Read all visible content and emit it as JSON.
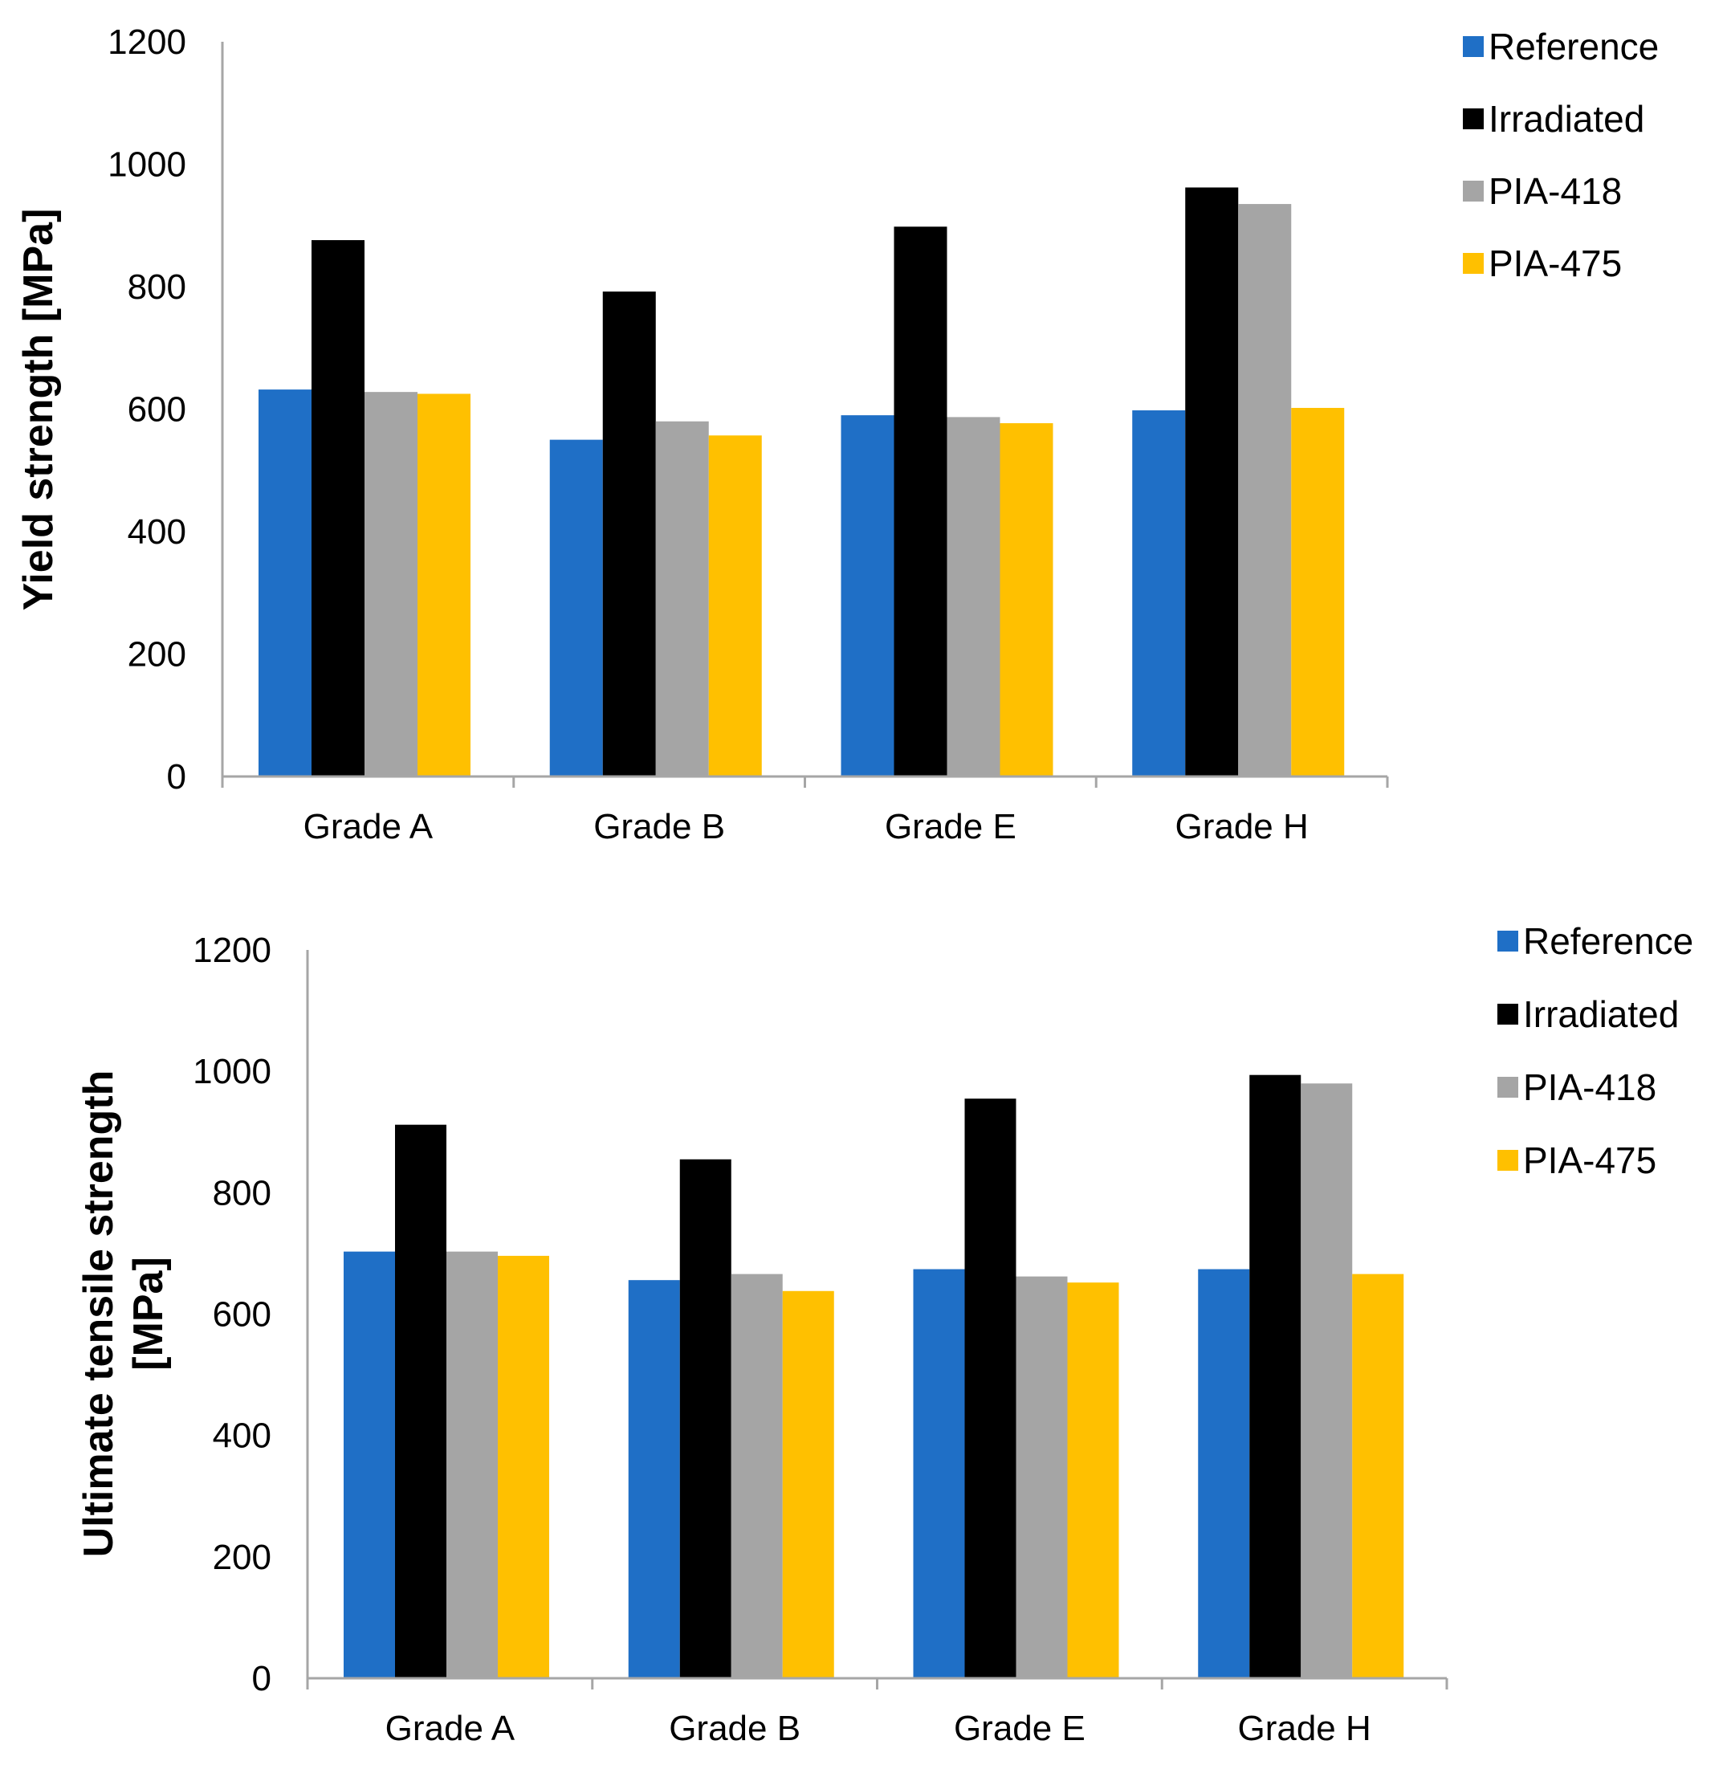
{
  "chart_data": [
    {
      "type": "bar",
      "title": "",
      "xlabel": "",
      "ylabel": "Yield strength [MPa]",
      "ylim": [
        0,
        1200
      ],
      "yticks": [
        "0",
        "200",
        "400",
        "600",
        "800",
        "1000",
        "1200"
      ],
      "grid": false,
      "legend_position": "top-right",
      "categories": [
        "Grade A",
        "Grade B",
        "Grade E",
        "Grade H"
      ],
      "series": [
        {
          "name": "Reference",
          "color": "#1f6fc6",
          "values": [
            632,
            550,
            590,
            598
          ]
        },
        {
          "name": "Irradiated",
          "color": "#000000",
          "values": [
            876,
            792,
            898,
            962
          ]
        },
        {
          "name": "PIA-418",
          "color": "#a5a5a5",
          "values": [
            628,
            580,
            587,
            935
          ]
        },
        {
          "name": "PIA-475",
          "color": "#ffc000",
          "values": [
            625,
            557,
            577,
            602
          ]
        }
      ]
    },
    {
      "type": "bar",
      "title": "",
      "xlabel": "",
      "ylabel": "Ultimate tensile strength [MPa]",
      "ylabel_lines": [
        "Ultimate tensile strength",
        "[MPa]"
      ],
      "ylim": [
        0,
        1200
      ],
      "yticks": [
        "0",
        "200",
        "400",
        "600",
        "800",
        "1000",
        "1200"
      ],
      "grid": false,
      "legend_position": "top-right",
      "categories": [
        "Grade A",
        "Grade B",
        "Grade E",
        "Grade H"
      ],
      "series": [
        {
          "name": "Reference",
          "color": "#1f6fc6",
          "values": [
            703,
            656,
            674,
            674
          ]
        },
        {
          "name": "Irradiated",
          "color": "#000000",
          "values": [
            912,
            855,
            955,
            994
          ]
        },
        {
          "name": "PIA-418",
          "color": "#a5a5a5",
          "values": [
            703,
            666,
            662,
            980
          ]
        },
        {
          "name": "PIA-475",
          "color": "#ffc000",
          "values": [
            696,
            638,
            652,
            666
          ]
        }
      ]
    }
  ]
}
